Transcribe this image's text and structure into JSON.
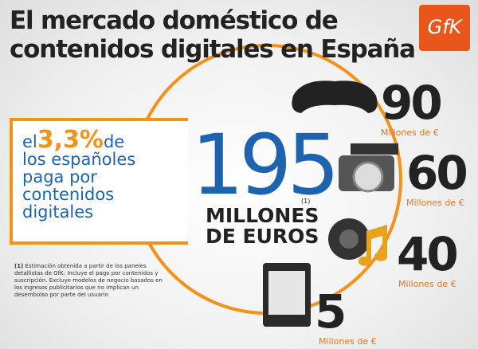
{
  "header": {
    "title_line1": "El mercado doméstico de",
    "title_line2": "contenidos digitales en España",
    "logo": "GfK"
  },
  "highlight": {
    "prefix": "el",
    "percent": "3,3%",
    "suffix": "de",
    "rest": [
      "los españoles",
      "paga por",
      "contenidos",
      "digitales"
    ]
  },
  "total": {
    "amount": "195",
    "note_ref": "(1)",
    "unit_line1": "MILLONES",
    "unit_line2": "DE EUROS"
  },
  "items": [
    {
      "amount": "90",
      "unit": "Millones de €"
    },
    {
      "amount": "60",
      "unit": "Millones de €"
    },
    {
      "amount": "40",
      "unit": "Millones de €"
    },
    {
      "amount": "5",
      "unit": "Millones de €"
    }
  ],
  "footnote": {
    "marker": "(1)",
    "text": "Estimación obtenida a partir de los paneles detallistas de GfK: Incluye el pago por contenidos y suscripción. Excluye modelos de negocio basados en los ingresos publicitarios que no implican un desembolso por parte del usuario"
  }
}
